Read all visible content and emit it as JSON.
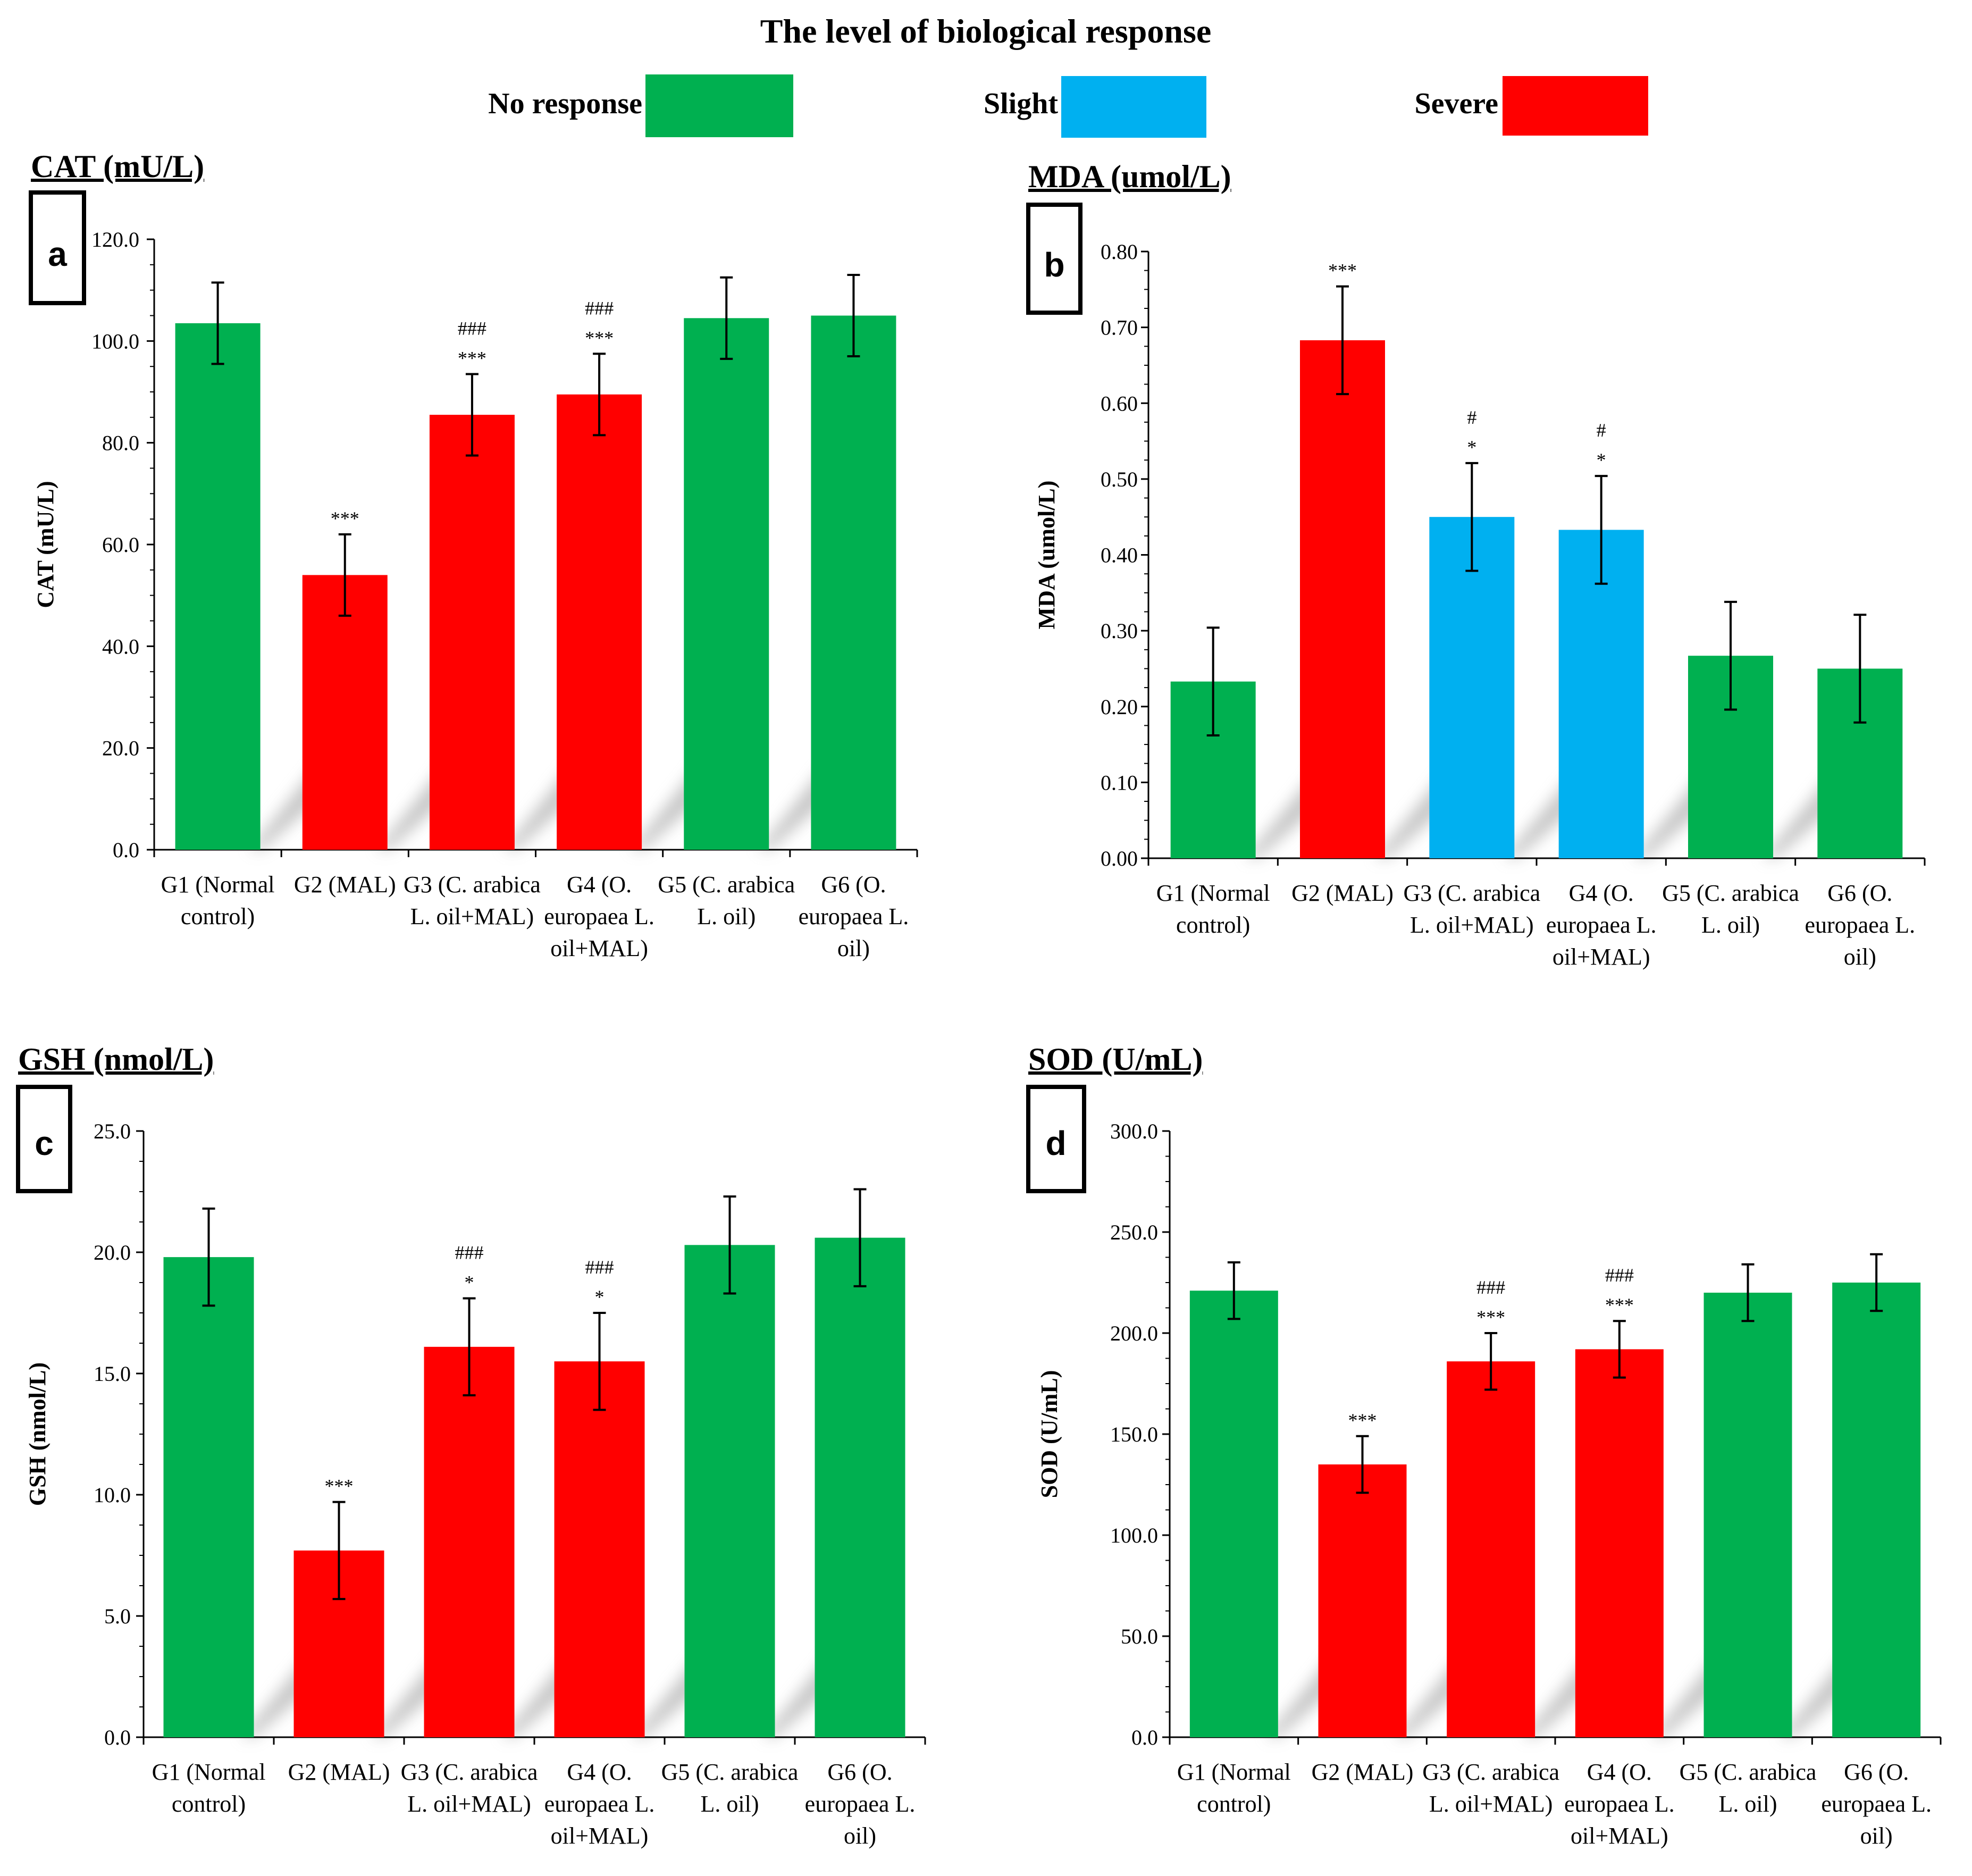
{
  "figure_title": "The level of biological response",
  "legend": [
    {
      "label": "No response",
      "color": "#00b050"
    },
    {
      "label": "Slight",
      "color": "#00b0f0"
    },
    {
      "label": "Severe",
      "color": "#ff0000"
    }
  ],
  "groups": [
    [
      "G1 (Normal",
      "control)"
    ],
    [
      "G2 (MAL)"
    ],
    [
      "G3 (C. arabica",
      "L. oil+MAL)"
    ],
    [
      "G4 (O.",
      "europaea L.",
      "oil+MAL)"
    ],
    [
      "G5 (C. arabica",
      "L. oil)"
    ],
    [
      "G6 (O.",
      "europaea L.",
      "oil)"
    ]
  ],
  "chart_data": [
    {
      "type": "bar",
      "panel": "a",
      "title": "CAT (mU/L)",
      "ylabel": "CAT (mU/L)",
      "categories": [
        "G1 (Normal control)",
        "G2 (MAL)",
        "G3 (C. arabica L. oil+MAL)",
        "G4 (O. europaea L. oil+MAL)",
        "G5 (C. arabica L. oil)",
        "G6 (O. europaea L. oil)"
      ],
      "values": [
        103.5,
        54.0,
        85.5,
        89.5,
        104.5,
        105.0
      ],
      "errors": [
        8.0,
        8.0,
        8.0,
        8.0,
        8.0,
        8.0
      ],
      "response": [
        "No response",
        "Severe",
        "Severe",
        "Severe",
        "No response",
        "No response"
      ],
      "significance": [
        "",
        "***",
        "***",
        "***",
        "",
        ""
      ],
      "hash_significance": [
        "",
        "",
        "###",
        "###",
        "",
        ""
      ],
      "ylim": [
        0,
        120
      ],
      "yticks": [
        "0.0",
        "20.0",
        "40.0",
        "60.0",
        "80.0",
        "100.0",
        "120.0"
      ]
    },
    {
      "type": "bar",
      "panel": "b",
      "title": "MDA (umol/L)",
      "ylabel": "MDA (umol/L)",
      "categories": [
        "G1 (Normal control)",
        "G2 (MAL)",
        "G3 (C. arabica L. oil+MAL)",
        "G4 (O. europaea L. oil+MAL)",
        "G5 (C. arabica L. oil)",
        "G6 (O. europaea L. oil)"
      ],
      "values": [
        0.233,
        0.683,
        0.45,
        0.433,
        0.267,
        0.25
      ],
      "errors": [
        0.071,
        0.071,
        0.071,
        0.071,
        0.071,
        0.071
      ],
      "response": [
        "No response",
        "Severe",
        "Slight",
        "Slight",
        "No response",
        "No response"
      ],
      "significance": [
        "",
        "***",
        "*",
        "*",
        "",
        ""
      ],
      "hash_significance": [
        "",
        "",
        "#",
        "#",
        "",
        ""
      ],
      "ylim": [
        0,
        0.8
      ],
      "yticks": [
        "0.00",
        "0.10",
        "0.20",
        "0.30",
        "0.40",
        "0.50",
        "0.60",
        "0.70",
        "0.80"
      ]
    },
    {
      "type": "bar",
      "panel": "c",
      "title": "GSH (nmol/L)",
      "ylabel": "GSH (nmol/L)",
      "categories": [
        "G1 (Normal control)",
        "G2 (MAL)",
        "G3 (C. arabica L. oil+MAL)",
        "G4 (O. europaea L. oil+MAL)",
        "G5 (C. arabica L. oil)",
        "G6 (O. europaea L. oil)"
      ],
      "values": [
        19.8,
        7.7,
        16.1,
        15.5,
        20.3,
        20.6
      ],
      "errors": [
        2.0,
        2.0,
        2.0,
        2.0,
        2.0,
        2.0
      ],
      "response": [
        "No response",
        "Severe",
        "Severe",
        "Severe",
        "No response",
        "No response"
      ],
      "significance": [
        "",
        "***",
        "*",
        "*",
        "",
        ""
      ],
      "hash_significance": [
        "",
        "",
        "###",
        "###",
        "",
        ""
      ],
      "ylim": [
        0,
        25
      ],
      "yticks": [
        "0.0",
        "5.0",
        "10.0",
        "15.0",
        "20.0",
        "25.0"
      ]
    },
    {
      "type": "bar",
      "panel": "d",
      "title": "SOD (U/mL)",
      "ylabel": "SOD (U/mL)",
      "categories": [
        "G1 (Normal control)",
        "G2 (MAL)",
        "G3 (C. arabica L. oil+MAL)",
        "G4 (O. europaea L. oil+MAL)",
        "G5 (C. arabica L. oil)",
        "G6 (O. europaea L. oil)"
      ],
      "values": [
        221.0,
        135.0,
        186.0,
        192.0,
        220.0,
        225.0
      ],
      "errors": [
        14.0,
        14.0,
        14.0,
        14.0,
        14.0,
        14.0
      ],
      "response": [
        "No response",
        "Severe",
        "Severe",
        "Severe",
        "No response",
        "No response"
      ],
      "significance": [
        "",
        "***",
        "***",
        "***",
        "",
        ""
      ],
      "hash_significance": [
        "",
        "",
        "###",
        "###",
        "",
        ""
      ],
      "ylim": [
        0,
        300
      ],
      "yticks": [
        "0.0",
        "50.0",
        "100.0",
        "150.0",
        "200.0",
        "250.0",
        "300.0"
      ]
    }
  ]
}
